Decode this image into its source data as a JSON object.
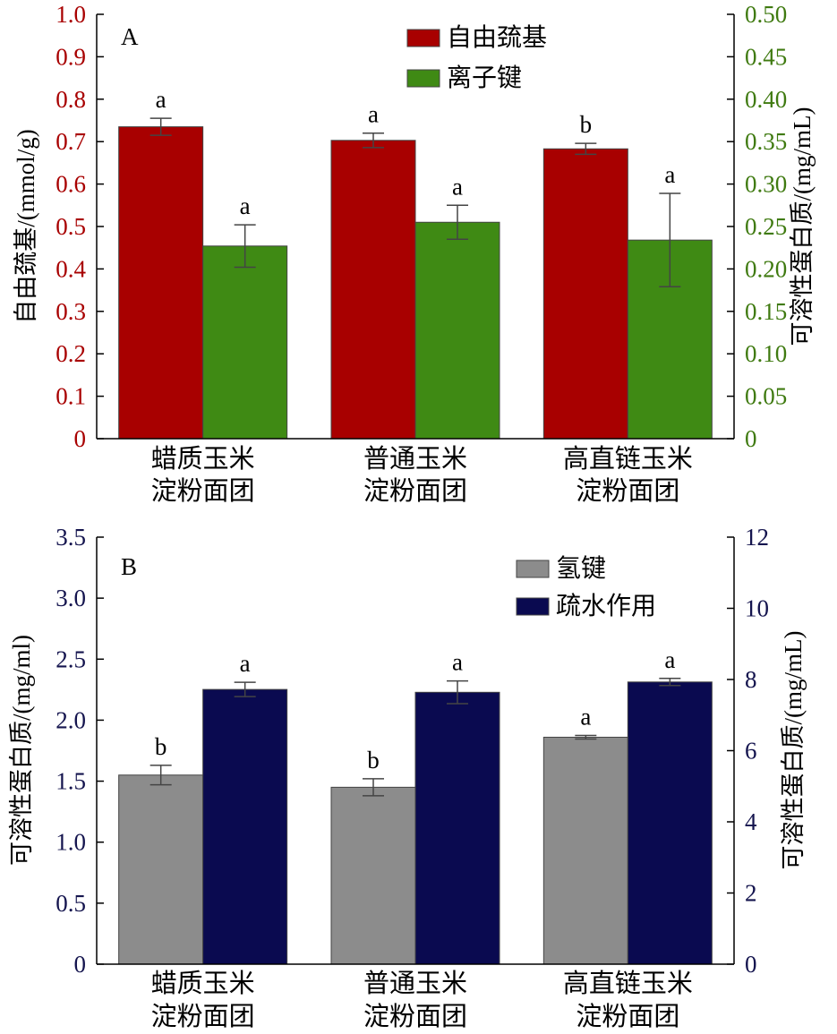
{
  "chart_data": [
    {
      "panel": "A",
      "type": "bar",
      "categories": [
        {
          "line1": "蜡质玉米",
          "line2": "淀粉面团"
        },
        {
          "line1": "普通玉米",
          "line2": "淀粉面团"
        },
        {
          "line1": "高直链玉米",
          "line2": "淀粉面团"
        }
      ],
      "series": [
        {
          "name": "自由巯基",
          "axis": "left",
          "color": "#a80000",
          "values": [
            0.735,
            0.703,
            0.683
          ],
          "errors": [
            0.02,
            0.017,
            0.013
          ],
          "sig": [
            "a",
            "a",
            "b"
          ]
        },
        {
          "name": "离子键",
          "axis": "right",
          "color": "#3f8a14",
          "values": [
            0.227,
            0.255,
            0.234
          ],
          "errors": [
            0.025,
            0.02,
            0.055
          ],
          "sig": [
            "a",
            "a",
            "a"
          ]
        }
      ],
      "left_axis": {
        "label": "自由巯基/(mmol/g)",
        "color": "#a80000",
        "range": [
          0,
          1.0
        ],
        "ticks": [
          "0",
          "0.1",
          "0.2",
          "0.3",
          "0.4",
          "0.5",
          "0.6",
          "0.7",
          "0.8",
          "0.9",
          "1.0"
        ]
      },
      "right_axis": {
        "label": "可溶性蛋白质/(mg/mL)",
        "color": "#3f7a10",
        "range": [
          0,
          0.5
        ],
        "ticks": [
          "0",
          "0.05",
          "0.10",
          "0.15",
          "0.20",
          "0.25",
          "0.30",
          "0.35",
          "0.40",
          "0.45",
          "0.50"
        ]
      },
      "legend_position": "top-center"
    },
    {
      "panel": "B",
      "type": "bar",
      "categories": [
        {
          "line1": "蜡质玉米",
          "line2": "淀粉面团"
        },
        {
          "line1": "普通玉米",
          "line2": "淀粉面团"
        },
        {
          "line1": "高直链玉米",
          "line2": "淀粉面团"
        }
      ],
      "series": [
        {
          "name": "氢键",
          "axis": "left",
          "color": "#8c8c8c",
          "values": [
            1.55,
            1.45,
            1.86
          ],
          "errors": [
            0.08,
            0.07,
            0.015
          ],
          "sig": [
            "b",
            "b",
            "a"
          ]
        },
        {
          "name": "疏水作用",
          "axis": "right",
          "color": "#0a0a50",
          "values": [
            7.72,
            7.64,
            7.93
          ],
          "errors": [
            0.2,
            0.32,
            0.1
          ],
          "sig": [
            "a",
            "a",
            "a"
          ]
        }
      ],
      "left_axis": {
        "label": "可溶性蛋白质/(mg/ml)",
        "color": "#14144e",
        "range": [
          0,
          3.5
        ],
        "ticks": [
          "0",
          "0.5",
          "1.0",
          "1.5",
          "2.0",
          "2.5",
          "3.0",
          "3.5"
        ]
      },
      "right_axis": {
        "label": "可溶性蛋白质/(mg/mL)",
        "color": "#14144e",
        "range": [
          0,
          12
        ],
        "ticks": [
          "0",
          "2",
          "4",
          "6",
          "8",
          "10",
          "12"
        ]
      },
      "legend_position": "top-right"
    }
  ]
}
